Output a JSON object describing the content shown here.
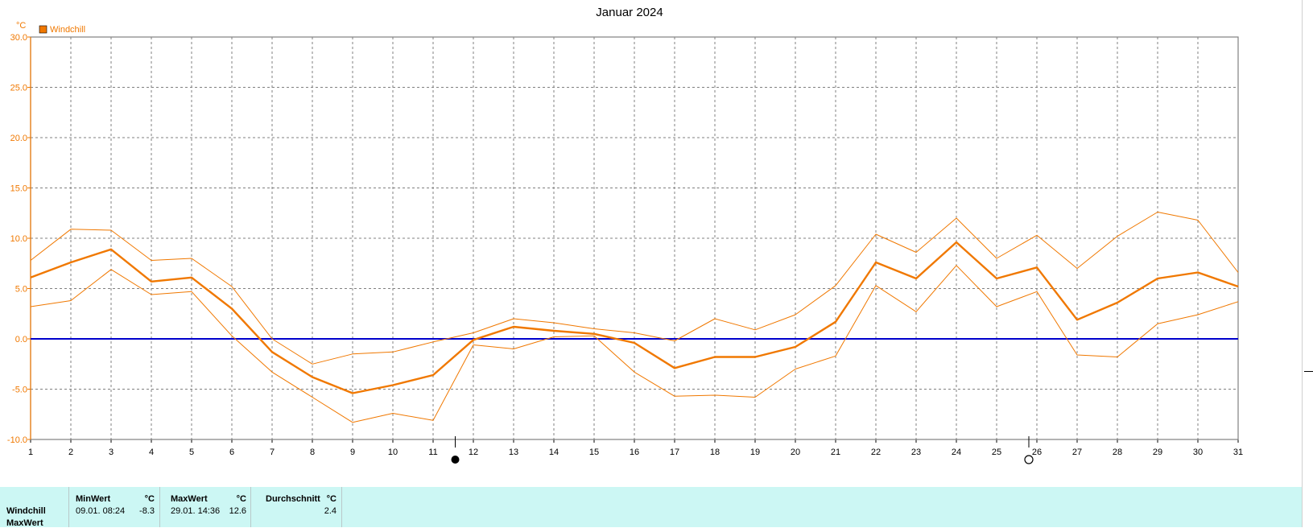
{
  "chart_data": {
    "type": "line",
    "title": "Januar 2024",
    "unit_label": "°C",
    "ylim": [
      -10,
      30
    ],
    "yticks": [
      "30.0",
      "25.0",
      "20.0",
      "15.0",
      "10.0",
      "5.0",
      "0.0",
      "-5.0",
      "-10.0"
    ],
    "x": [
      1,
      2,
      3,
      4,
      5,
      6,
      7,
      8,
      9,
      10,
      11,
      12,
      13,
      14,
      15,
      16,
      17,
      18,
      19,
      20,
      21,
      22,
      23,
      24,
      25,
      26,
      27,
      28,
      29,
      30,
      31
    ],
    "grid": true,
    "legend": {
      "label": "Windchill",
      "position": "top-left"
    },
    "series": [
      {
        "role": "max",
        "name": "",
        "color": "#f07800",
        "values": [
          7.8,
          10.9,
          10.8,
          7.8,
          8.0,
          5.2,
          0.0,
          -2.5,
          -1.5,
          -1.3,
          -0.3,
          0.6,
          2.0,
          1.6,
          1.0,
          0.6,
          -0.2,
          2.0,
          0.9,
          2.4,
          5.3,
          10.4,
          8.6,
          12.0,
          8.0,
          10.3,
          7.0,
          10.2,
          12.6,
          11.8,
          6.6
        ]
      },
      {
        "role": "avg",
        "name": "",
        "color": "#f07800",
        "values": [
          6.1,
          7.6,
          8.9,
          5.7,
          6.1,
          3.0,
          -1.3,
          -3.8,
          -5.4,
          -4.6,
          -3.6,
          -0.1,
          1.2,
          0.8,
          0.5,
          -0.4,
          -2.9,
          -1.8,
          -1.8,
          -0.8,
          1.7,
          7.6,
          6.0,
          9.6,
          6.0,
          7.1,
          1.9,
          3.6,
          6.0,
          6.6,
          5.2
        ]
      },
      {
        "role": "min",
        "name": "",
        "color": "#f07800",
        "values": [
          3.2,
          3.8,
          6.9,
          4.4,
          4.7,
          0.3,
          -3.3,
          -5.8,
          -8.3,
          -7.4,
          -8.1,
          -0.6,
          -1.0,
          0.2,
          0.3,
          -3.3,
          -5.7,
          -5.6,
          -5.8,
          -3.0,
          -1.7,
          5.3,
          2.7,
          7.3,
          3.2,
          4.7,
          -1.6,
          -1.8,
          1.5,
          2.4,
          3.7
        ]
      }
    ],
    "zero_line_color": "#0000cc",
    "moon_phases": [
      {
        "day": 11.55,
        "phase": "new-moon"
      },
      {
        "day": 25.8,
        "phase": "full-moon"
      }
    ]
  },
  "colors": {
    "axis": "#f07800",
    "grid": "#808080",
    "stats_bg": "#ccf7f4"
  },
  "stats": {
    "headers": {
      "min": "MinWert",
      "min_unit": "°C",
      "max": "MaxWert",
      "max_unit": "°C",
      "avg": "Durchschnitt",
      "avg_unit": "°C"
    },
    "rows": [
      {
        "label": "Windchill",
        "min_time": "09.01.  08:24",
        "min_value": "-8.3",
        "max_time": "29.01.  14:36",
        "max_value": "12.6",
        "avg_value": "2.4"
      }
    ],
    "next_label": "MaxWert"
  }
}
